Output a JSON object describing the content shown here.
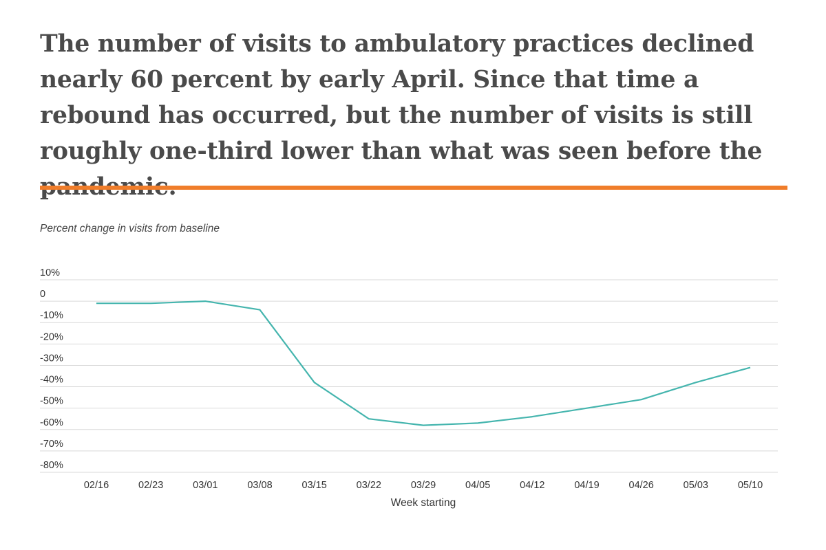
{
  "headline": "The number of visits to ambulatory practices declined nearly 60 percent by early April. Since that time a rebound has occurred, but the number of visits is still roughly one-third lower than what was seen before the pandemic.",
  "colors": {
    "accent_rule": "#f07d2a",
    "line": "#45b5ae",
    "grid": "#d9d9d9",
    "text": "#4a4a4a"
  },
  "chart_data": {
    "type": "line",
    "subtitle": "Percent change in visits from baseline",
    "xlabel": "Week starting",
    "ylabel": "",
    "categories": [
      "02/16",
      "02/23",
      "03/01",
      "03/08",
      "03/15",
      "03/22",
      "03/29",
      "04/05",
      "04/12",
      "04/19",
      "04/26",
      "05/03",
      "05/10"
    ],
    "series": [
      {
        "values": [
          -1,
          -1,
          0,
          -4,
          -38,
          -55,
          -58,
          -57,
          -54,
          -50,
          -46,
          -38,
          -31
        ]
      }
    ],
    "ylim": [
      -80,
      10
    ],
    "yticks": [
      10,
      0,
      -10,
      -20,
      -30,
      -40,
      -50,
      -60,
      -70,
      -80
    ],
    "ytick_labels": [
      "10%",
      "0",
      "-10%",
      "-20%",
      "-30%",
      "-40%",
      "-50%",
      "-60%",
      "-70%",
      "-80%"
    ],
    "grid": true
  }
}
